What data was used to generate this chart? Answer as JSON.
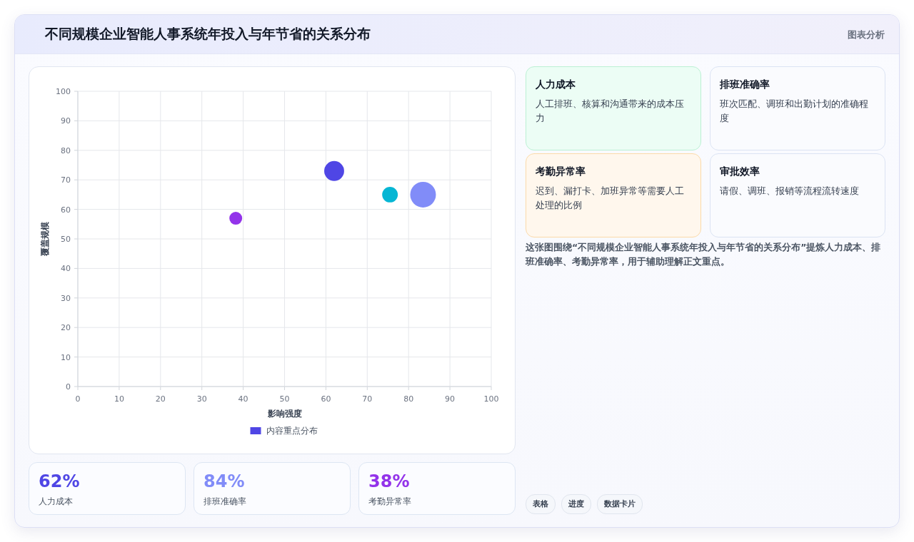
{
  "chart_data": [
    {
      "type": "bubble",
      "title": "不同规模企业智能人事系统年投入与年节省的关系分布",
      "xlabel": "影响强度",
      "ylabel": "覆盖规模",
      "annotations": [
        "图表分析"
      ],
      "series": [
        {
          "name": "内容重点分布",
          "color": "#4f46e5",
          "x": [
            62,
            75.5,
            83.5,
            38.2
          ],
          "values": [
            73,
            65,
            65,
            57
          ],
          "sizes": [
            0.6,
            0.37,
            1,
            0.25
          ],
          "colors": [
            "#4f46e5",
            "#06b6d4",
            "#818cf8",
            "#9333ea"
          ]
        }
      ],
      "xlim": [
        0,
        100
      ],
      "ylim": [
        0,
        100
      ],
      "xticks": [
        0,
        10,
        20,
        30,
        40,
        50,
        60,
        70,
        80,
        90,
        100
      ],
      "yticks": [
        0,
        10,
        20,
        30,
        40,
        50,
        60,
        70,
        80,
        90,
        100
      ],
      "grid": true,
      "legend": "bottom"
    },
    {
      "type": "other",
      "annotations": [
        "62%",
        "人力成本",
        "84%",
        "排班准确率",
        "38%",
        "考勤异常率"
      ]
    },
    {
      "type": "other",
      "annotations": [
        "人力成本",
        "人工排班、核算和沟通带来的成本压力",
        "排班准确率",
        "班次匹配、调班和出勤计划的准确程度",
        "考勤异常率",
        "迟到、漏打卡、加班异常等需要人工处理的比例",
        "审批效率",
        "请假、调班、报销等流程流转速度",
        "这张图围绕“不同规模企业智能人事系统年投入与年节省的关系分布”提炼人力成本、排班准确率、考勤异常率，用于辅助理解正文重点。",
        "表格",
        "进度",
        "数据卡片"
      ]
    }
  ]
}
